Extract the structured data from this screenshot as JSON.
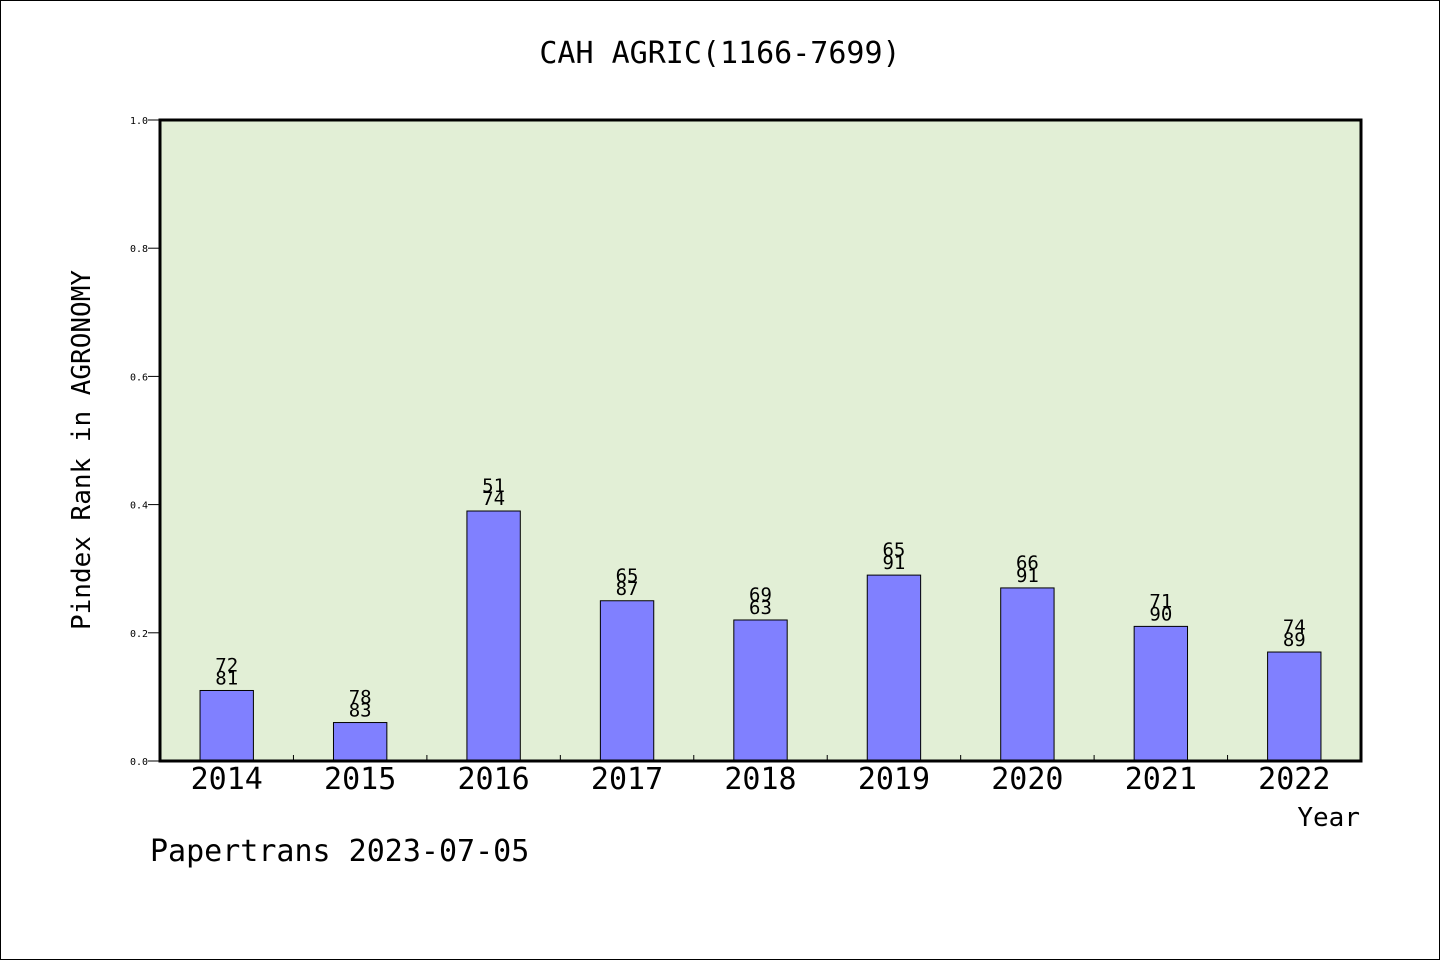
{
  "chart_data": {
    "type": "bar",
    "title": "CAH AGRIC(1166-7699)",
    "xlabel": "Year",
    "ylabel": "Pindex Rank in AGRONOMY",
    "categories": [
      "2014",
      "2015",
      "2016",
      "2017",
      "2018",
      "2019",
      "2020",
      "2021",
      "2022"
    ],
    "values": [
      0.11,
      0.06,
      0.39,
      0.25,
      0.22,
      0.29,
      0.27,
      0.21,
      0.17
    ],
    "annotations": [
      [
        "72",
        "81"
      ],
      [
        "78",
        "83"
      ],
      [
        "51",
        "74"
      ],
      [
        "65",
        "87"
      ],
      [
        "69",
        "63"
      ],
      [
        "65",
        "91"
      ],
      [
        "66",
        "91"
      ],
      [
        "71",
        "90"
      ],
      [
        "74",
        "89"
      ]
    ],
    "ylim": [
      0.0,
      1.0
    ],
    "yticks": [
      "0.0",
      "0.2",
      "0.4",
      "0.6",
      "0.8",
      "1.0"
    ],
    "grid": false,
    "legend": "none"
  },
  "colors": {
    "plot_background": "#e2efd6",
    "bar_fill": "#8080ff",
    "bar_stroke": "#000000"
  },
  "footer": "Papertrans 2023-07-05"
}
